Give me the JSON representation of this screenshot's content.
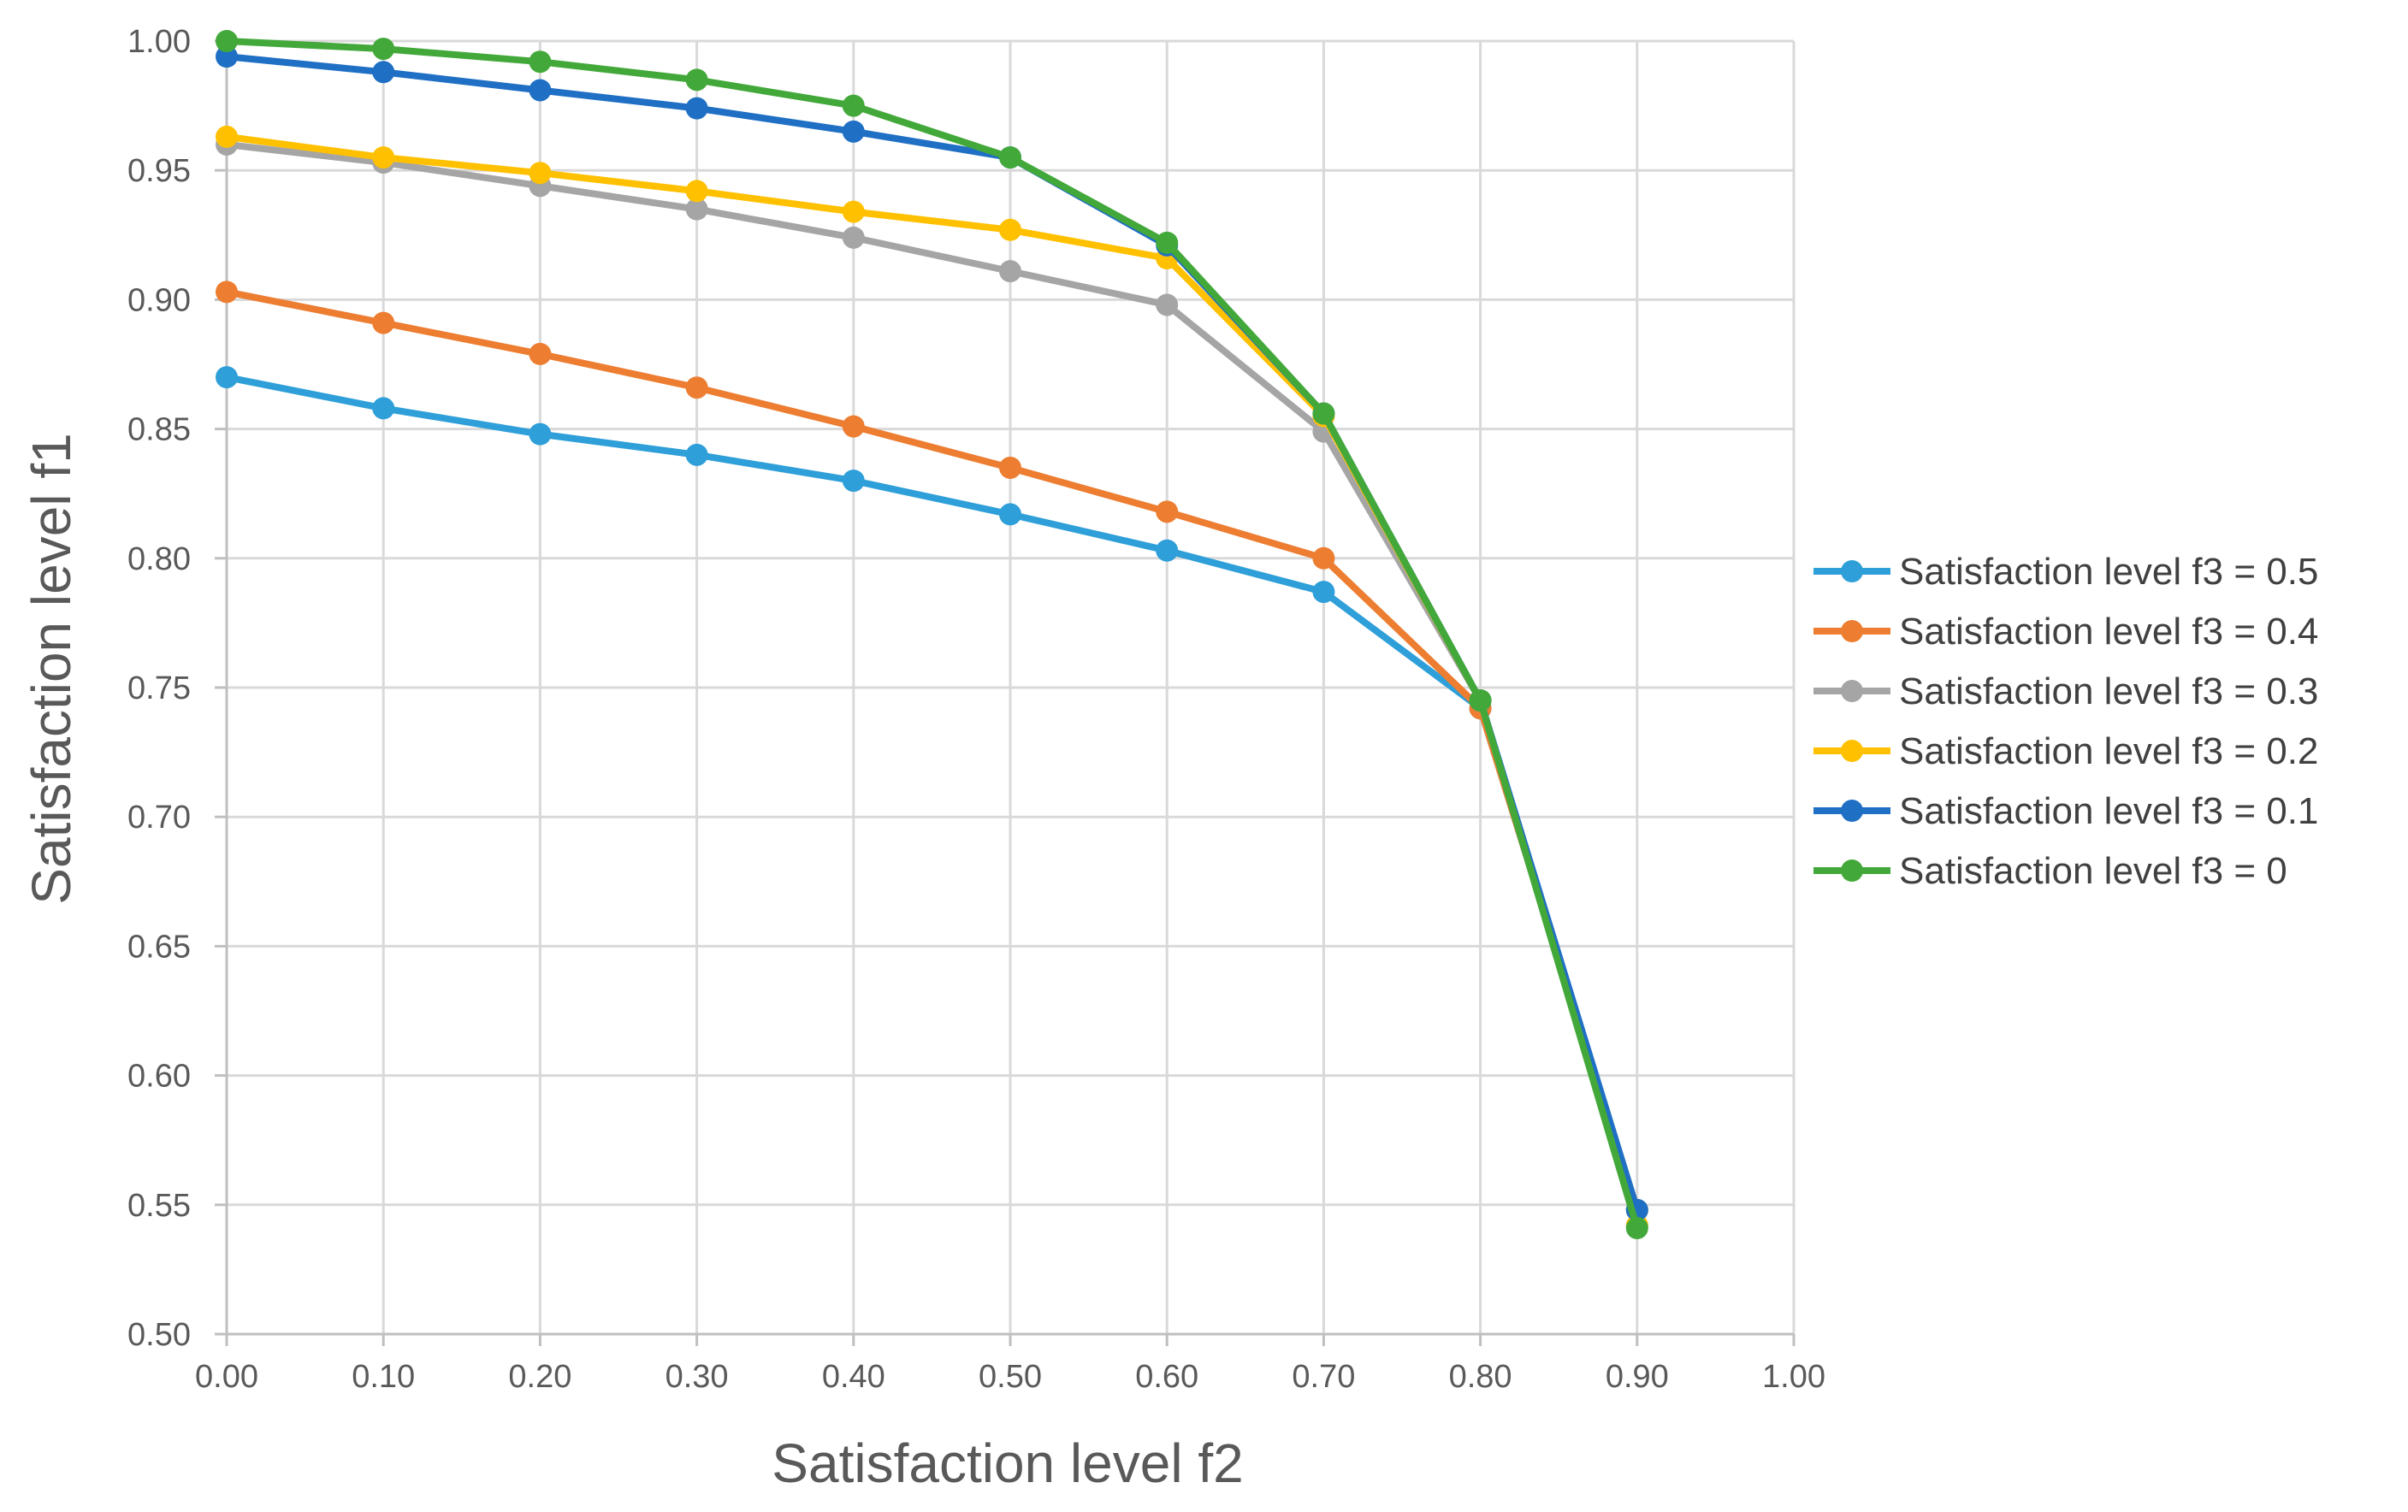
{
  "chart_data": {
    "type": "line",
    "title": "",
    "xlabel": "Satisfaction level f2",
    "ylabel": "Satisfaction level f1",
    "xlim": [
      0,
      1
    ],
    "ylim": [
      0.5,
      1
    ],
    "x_ticks": [
      "0.00",
      "0.10",
      "0.20",
      "0.30",
      "0.40",
      "0.50",
      "0.60",
      "0.70",
      "0.80",
      "0.90",
      "1.00"
    ],
    "y_ticks": [
      "1.00",
      "0.95",
      "0.90",
      "0.85",
      "0.80",
      "0.75",
      "0.70",
      "0.65",
      "0.60",
      "0.55",
      "0.50"
    ],
    "grid": true,
    "legend_position": "right",
    "series": [
      {
        "name": "Satisfaction level f3 = 0.5",
        "color": "#2E9FD8",
        "x": [
          0,
          0.1,
          0.2,
          0.3,
          0.4,
          0.5,
          0.6,
          0.7,
          0.8,
          0.9
        ],
        "y": [
          0.87,
          0.858,
          0.848,
          0.84,
          0.83,
          0.817,
          0.803,
          0.787,
          0.742,
          0.548
        ]
      },
      {
        "name": "Satisfaction level f3 = 0.4",
        "color": "#ED7D31",
        "x": [
          0,
          0.1,
          0.2,
          0.3,
          0.4,
          0.5,
          0.6,
          0.7,
          0.8,
          0.9
        ],
        "y": [
          0.903,
          0.891,
          0.879,
          0.866,
          0.851,
          0.835,
          0.818,
          0.8,
          0.742,
          0.548
        ]
      },
      {
        "name": "Satisfaction level f3 = 0.3",
        "color": "#A5A5A5",
        "x": [
          0,
          0.1,
          0.2,
          0.3,
          0.4,
          0.5,
          0.6,
          0.7,
          0.8,
          0.9
        ],
        "y": [
          0.96,
          0.953,
          0.944,
          0.935,
          0.924,
          0.911,
          0.898,
          0.849,
          0.745,
          0.542
        ]
      },
      {
        "name": "Satisfaction level f3 = 0.2",
        "color": "#FFC000",
        "x": [
          0,
          0.1,
          0.2,
          0.3,
          0.4,
          0.5,
          0.6,
          0.7,
          0.8,
          0.9
        ],
        "y": [
          0.963,
          0.955,
          0.949,
          0.942,
          0.934,
          0.927,
          0.916,
          0.855,
          0.745,
          0.542
        ]
      },
      {
        "name": "Satisfaction level f3 = 0.1",
        "color": "#1F6FC4",
        "x": [
          0,
          0.1,
          0.2,
          0.3,
          0.4,
          0.5,
          0.6,
          0.7,
          0.8,
          0.9
        ],
        "y": [
          0.994,
          0.988,
          0.981,
          0.974,
          0.965,
          0.955,
          0.921,
          0.856,
          0.745,
          0.548
        ]
      },
      {
        "name": "Satisfaction level f3 = 0",
        "color": "#43A83A",
        "x": [
          0,
          0.1,
          0.2,
          0.3,
          0.4,
          0.5,
          0.6,
          0.7,
          0.8,
          0.9
        ],
        "y": [
          1.0,
          0.997,
          0.992,
          0.985,
          0.975,
          0.955,
          0.922,
          0.856,
          0.745,
          0.541
        ]
      }
    ]
  }
}
